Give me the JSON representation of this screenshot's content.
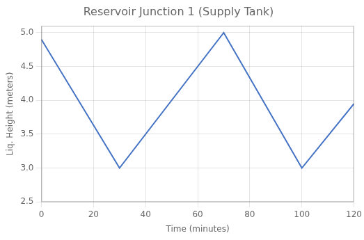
{
  "chart_data": {
    "type": "line",
    "title": "Reservoir Junction 1 (Supply Tank)",
    "xlabel": "Time (minutes)",
    "ylabel": "Liq. Height (meters)",
    "x": [
      0,
      30,
      70,
      100,
      120
    ],
    "values": [
      4.9,
      3.0,
      5.0,
      3.0,
      3.95
    ],
    "color": "#4472C4",
    "xlim": [
      0,
      120
    ],
    "ylim": [
      2.5,
      5.1
    ],
    "xticks": [
      0,
      20,
      40,
      60,
      80,
      100,
      120
    ],
    "yticks": [
      2.5,
      {
        "value": 3.0,
        "label": "3.0"
      },
      3.5,
      {
        "value": 4.0,
        "label": "4.0"
      },
      4.5,
      {
        "value": 5.0,
        "label": "5.0"
      }
    ],
    "grid": true
  }
}
